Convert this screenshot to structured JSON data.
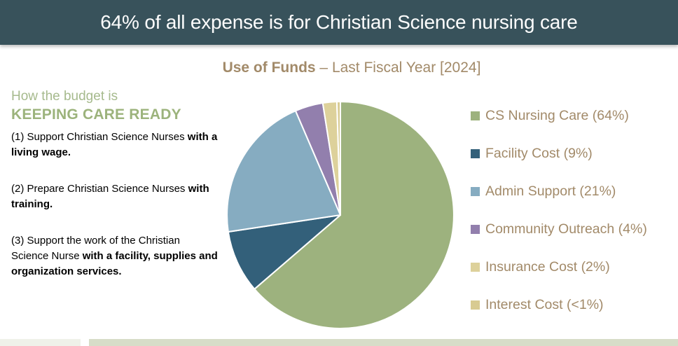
{
  "banner": {
    "title": "64% of all expense is for Christian Science nursing care"
  },
  "subtitle": {
    "bold": "Use of Funds",
    "rest": " – Last Fiscal Year [2024]"
  },
  "left_block": {
    "heading_line1": "How the budget is",
    "heading_line2": "KEEPING CARE READY",
    "paragraphs": [
      {
        "normal": "(1) Support Christian Science Nurses ",
        "bold": "with a living wage."
      },
      {
        "normal": "(2) Prepare Christian Science Nurses ",
        "bold": "with training."
      },
      {
        "normal": "(3) Support the work of the Christian Science Nurse ",
        "bold": "with a facility, supplies and organization services."
      }
    ]
  },
  "chart_data": {
    "type": "pie",
    "title": "Use of Funds – Last Fiscal Year [2024]",
    "start_angle": "12 o'clock, clockwise",
    "legend_position": "right",
    "slices": [
      {
        "label": "CS Nursing Care",
        "display": "CS Nursing Care (64%)",
        "value": 64,
        "display_value": "64%",
        "color": "#9DB27E"
      },
      {
        "label": "Facility Cost",
        "display": "Facility Cost (9%)",
        "value": 9,
        "display_value": "9%",
        "color": "#33607A"
      },
      {
        "label": "Admin Support",
        "display": "Admin Support (21%)",
        "value": 21,
        "display_value": "21%",
        "color": "#86ACC1"
      },
      {
        "label": "Community Outreach",
        "display": "Community Outreach (4%)",
        "value": 4,
        "display_value": "4%",
        "color": "#927FAD"
      },
      {
        "label": "Insurance Cost",
        "display": "Insurance Cost (2%)",
        "value": 2,
        "display_value": "2%",
        "color": "#DDD19B"
      },
      {
        "label": "Interest Cost",
        "display": "Interest Cost (<1%)",
        "value": 0.5,
        "display_value": "<1%",
        "color": "#D8CB92"
      }
    ]
  },
  "colors": {
    "banner_bg": "#38525B",
    "accent_text": "#A28A69",
    "heading_green": "#9CB37C",
    "footer_left_strip": "#EFF1E9",
    "footer_right_strip": "#D7DDC8"
  }
}
